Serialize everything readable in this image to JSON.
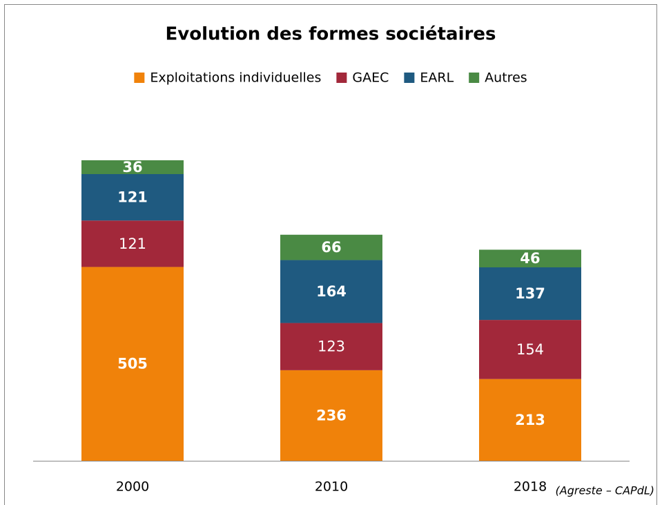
{
  "chart_data": {
    "type": "stacked_bar",
    "title": "Evolution des formes sociétaires",
    "categories": [
      "2000",
      "2010",
      "2018"
    ],
    "series": [
      {
        "name": "Exploitations individuelles",
        "color": "#f0820a",
        "label_weight": "bold",
        "values": [
          505,
          236,
          213
        ]
      },
      {
        "name": "GAEC",
        "color": "#a2283a",
        "label_weight": "normal",
        "values": [
          121,
          123,
          154
        ]
      },
      {
        "name": "EARL",
        "color": "#1f5a80",
        "label_weight": "bold",
        "values": [
          121,
          164,
          137
        ]
      },
      {
        "name": "Autres",
        "color": "#4a8a44",
        "label_weight": "bold",
        "values": [
          36,
          66,
          46
        ]
      }
    ],
    "ylim": [
      0,
      900
    ],
    "legend": "top",
    "source": "(Agreste – CAPdL)"
  }
}
